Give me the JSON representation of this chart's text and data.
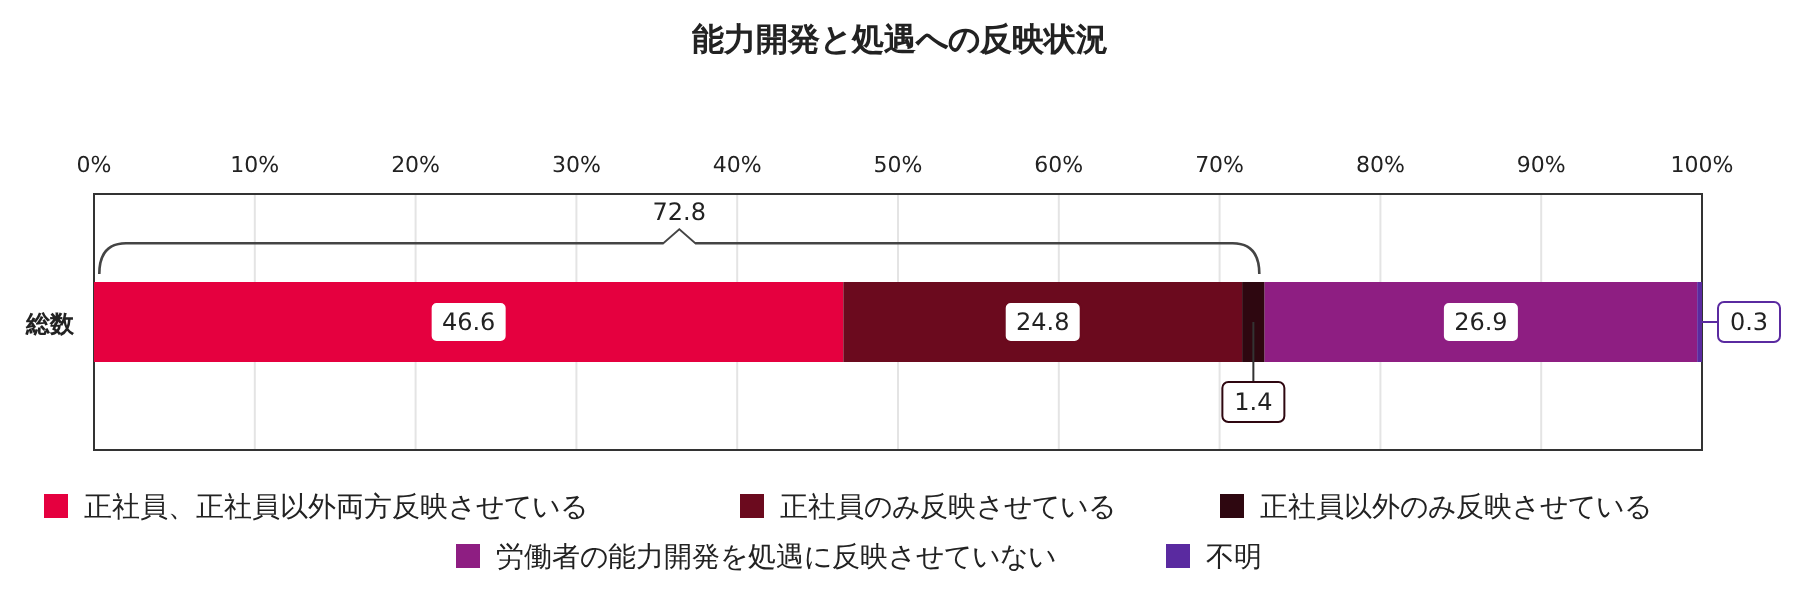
{
  "chart_data": {
    "type": "bar",
    "orientation": "horizontal",
    "stacked": true,
    "title": "能力開発と処遇への反映状況",
    "categories": [
      "総数"
    ],
    "series": [
      {
        "name": "正社員、正社員以外両方反映させている",
        "color": "#e5003f",
        "values": [
          46.6
        ]
      },
      {
        "name": "正社員のみ反映させている",
        "color": "#6b0a1e",
        "values": [
          24.8
        ]
      },
      {
        "name": "正社員以外のみ反映させている",
        "color": "#2e0710",
        "values": [
          1.4
        ]
      },
      {
        "name": "労働者の能力開発を処遇に反映させていない",
        "color": "#8e1e82",
        "values": [
          26.9
        ]
      },
      {
        "name": "不明",
        "color": "#5a2aa0",
        "values": [
          0.3
        ]
      }
    ],
    "xlim": [
      0,
      100
    ],
    "xticks": [
      {
        "value": 0,
        "label": "0%"
      },
      {
        "value": 10,
        "label": "10%"
      },
      {
        "value": 20,
        "label": "20%"
      },
      {
        "value": 30,
        "label": "30%"
      },
      {
        "value": 40,
        "label": "40%"
      },
      {
        "value": 50,
        "label": "50%"
      },
      {
        "value": 60,
        "label": "60%"
      },
      {
        "value": 70,
        "label": "70%"
      },
      {
        "value": 80,
        "label": "80%"
      },
      {
        "value": 90,
        "label": "90%"
      },
      {
        "value": 100,
        "label": "100%"
      }
    ],
    "grid": "x",
    "data_labels": true,
    "legend": "bottom",
    "annotations": [
      "72.8"
    ]
  }
}
